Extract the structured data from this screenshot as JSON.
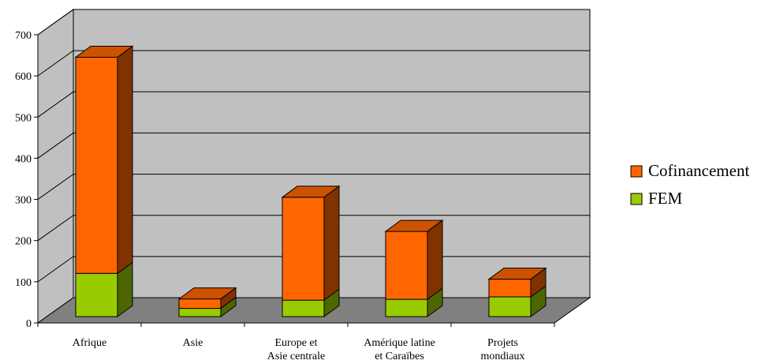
{
  "chart_data": {
    "type": "bar",
    "stacked": true,
    "three_d": true,
    "categories": [
      [
        "Afrique"
      ],
      [
        "Asie"
      ],
      [
        "Europe et",
        "Asie centrale"
      ],
      [
        "Amérique latine",
        "et Caraïbes"
      ],
      [
        "Projets",
        "mondiaux"
      ]
    ],
    "series": [
      {
        "name": "FEM",
        "values": [
          105,
          20,
          40,
          42,
          48
        ],
        "color": "#99cc00"
      },
      {
        "name": "Cofinancement",
        "values": [
          525,
          23,
          250,
          165,
          43
        ],
        "color": "#ff6600"
      }
    ],
    "ylim": [
      0,
      700
    ],
    "yticks": [
      "0",
      "100",
      "200",
      "300",
      "400",
      "500",
      "600",
      "700"
    ],
    "grid": true,
    "legend_position": "right",
    "legend_order": [
      "Cofinancement",
      "FEM"
    ],
    "wall_color": "#c0c0c0",
    "floor_color": "#808080"
  }
}
